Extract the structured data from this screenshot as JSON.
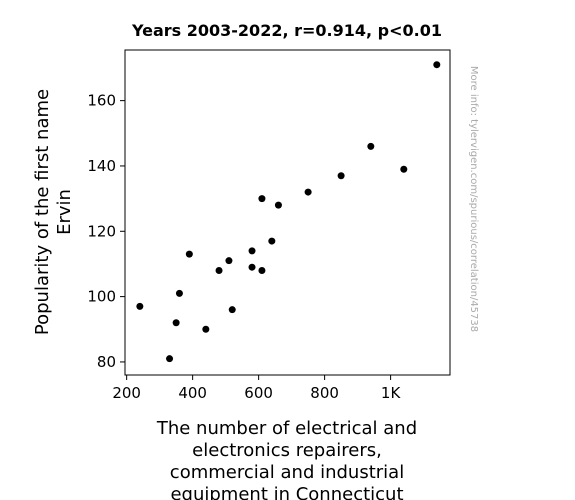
{
  "chart_data": {
    "type": "scatter",
    "title": "Years 2003-2022, r=0.914, p<0.01",
    "xlabel_lines": [
      "The number of electrical and",
      "electronics repairers,",
      "commercial and industrial",
      "equipment in Connecticut"
    ],
    "ylabel_lines": [
      "Popularity of the first name",
      "Ervin"
    ],
    "xlim": [
      195,
      1180
    ],
    "ylim": [
      76,
      175.5
    ],
    "xticks": [
      200,
      400,
      600,
      800,
      1000
    ],
    "xtick_labels": [
      "200",
      "400",
      "600",
      "800",
      "1K"
    ],
    "yticks": [
      80,
      100,
      120,
      140,
      160
    ],
    "ytick_labels": [
      "80",
      "100",
      "120",
      "140",
      "160"
    ],
    "grid": false,
    "point_color": "#000000",
    "points": [
      {
        "x": 240,
        "y": 97
      },
      {
        "x": 330,
        "y": 81
      },
      {
        "x": 350,
        "y": 92
      },
      {
        "x": 360,
        "y": 101
      },
      {
        "x": 390,
        "y": 113
      },
      {
        "x": 440,
        "y": 90
      },
      {
        "x": 480,
        "y": 108
      },
      {
        "x": 510,
        "y": 111
      },
      {
        "x": 520,
        "y": 96
      },
      {
        "x": 580,
        "y": 114
      },
      {
        "x": 580,
        "y": 109
      },
      {
        "x": 610,
        "y": 130
      },
      {
        "x": 610,
        "y": 108
      },
      {
        "x": 640,
        "y": 117
      },
      {
        "x": 660,
        "y": 128
      },
      {
        "x": 750,
        "y": 132
      },
      {
        "x": 850,
        "y": 137
      },
      {
        "x": 940,
        "y": 146
      },
      {
        "x": 1040,
        "y": 139
      },
      {
        "x": 1140,
        "y": 171
      }
    ]
  },
  "watermark": "More info: tylervigen.com/spurious/correlation/45738"
}
